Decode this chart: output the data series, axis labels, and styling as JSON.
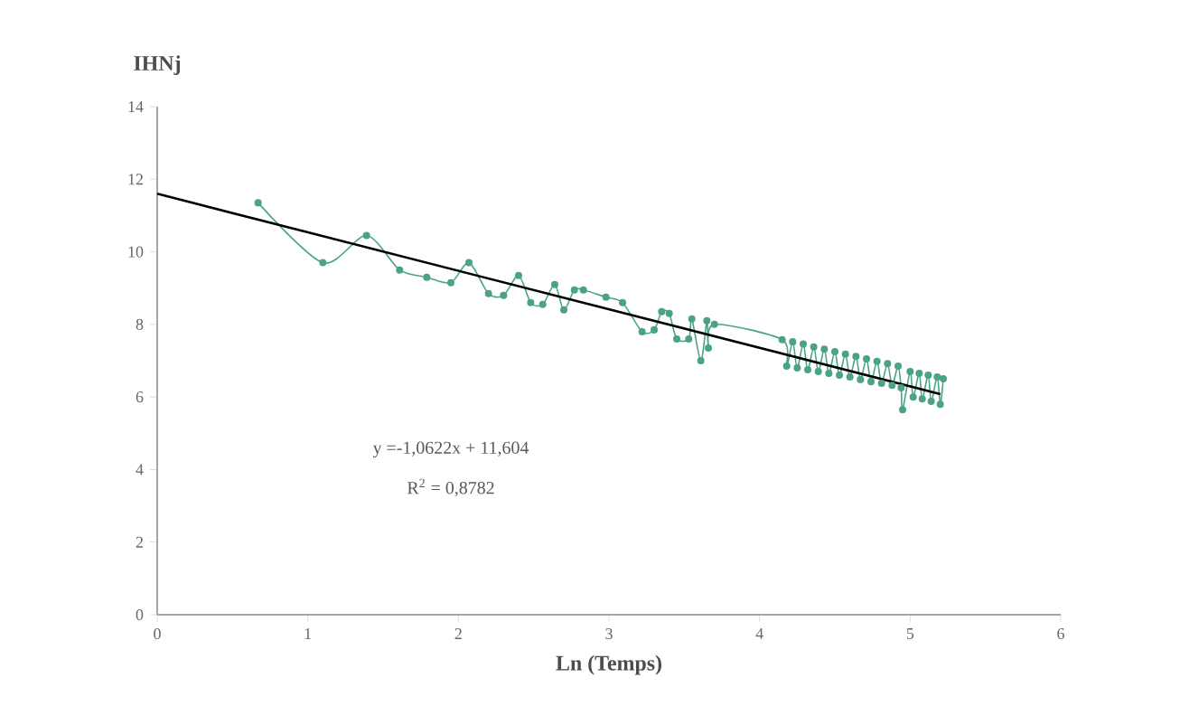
{
  "chart_data": {
    "type": "line",
    "xlabel": "Ln (Temps)",
    "ylabel": "IHNj",
    "xlim": [
      0,
      6
    ],
    "xticks": [
      0,
      1,
      2,
      3,
      4,
      5,
      6
    ],
    "ylim": [
      0,
      14
    ],
    "yticks": [
      0,
      2,
      4,
      6,
      8,
      10,
      12,
      14
    ],
    "grid": false,
    "annotations": [
      "y =-1,0622x + 11,604",
      "R$^{2}$ = 0,8782"
    ],
    "series": [
      {
        "color": "#4aa384",
        "marker": "circle",
        "line_style": "solid",
        "x": [
          0.67,
          1.1,
          1.39,
          1.61,
          1.79,
          1.95,
          2.07,
          2.2,
          2.3,
          2.4,
          2.48,
          2.56,
          2.64,
          2.7,
          2.77,
          2.83,
          2.98,
          3.09,
          3.22,
          3.3,
          3.35,
          3.4,
          3.45,
          3.53,
          3.55,
          3.61,
          3.65,
          3.66,
          3.7,
          4.15,
          4.18,
          4.22,
          4.25,
          4.29,
          4.32,
          4.36,
          4.39,
          4.43,
          4.46,
          4.5,
          4.53,
          4.57,
          4.6,
          4.64,
          4.67,
          4.71,
          4.74,
          4.78,
          4.81,
          4.85,
          4.88,
          4.92,
          4.94,
          4.95,
          5.0,
          5.02,
          5.06,
          5.08,
          5.12,
          5.14,
          5.18,
          5.2,
          5.22
        ],
        "values": [
          11.35,
          9.7,
          10.45,
          9.5,
          9.3,
          9.15,
          9.7,
          8.85,
          8.8,
          9.35,
          8.6,
          8.55,
          9.1,
          8.4,
          8.95,
          8.95,
          8.75,
          8.6,
          7.8,
          7.85,
          8.35,
          8.3,
          7.6,
          7.6,
          8.15,
          7.0,
          8.1,
          7.35,
          8.0,
          7.58,
          6.85,
          7.52,
          6.8,
          7.46,
          6.75,
          7.38,
          6.7,
          7.32,
          6.65,
          7.25,
          6.6,
          7.18,
          6.55,
          7.12,
          6.48,
          7.05,
          6.42,
          6.98,
          6.38,
          6.92,
          6.32,
          6.85,
          6.25,
          5.65,
          6.7,
          6.0,
          6.65,
          5.95,
          6.6,
          5.88,
          6.55,
          5.8,
          6.5
        ]
      },
      {
        "color": "#000000",
        "marker": "none",
        "line_style": "solid",
        "x": [
          0,
          5.2
        ],
        "values": [
          11.6,
          6.08
        ]
      }
    ]
  }
}
